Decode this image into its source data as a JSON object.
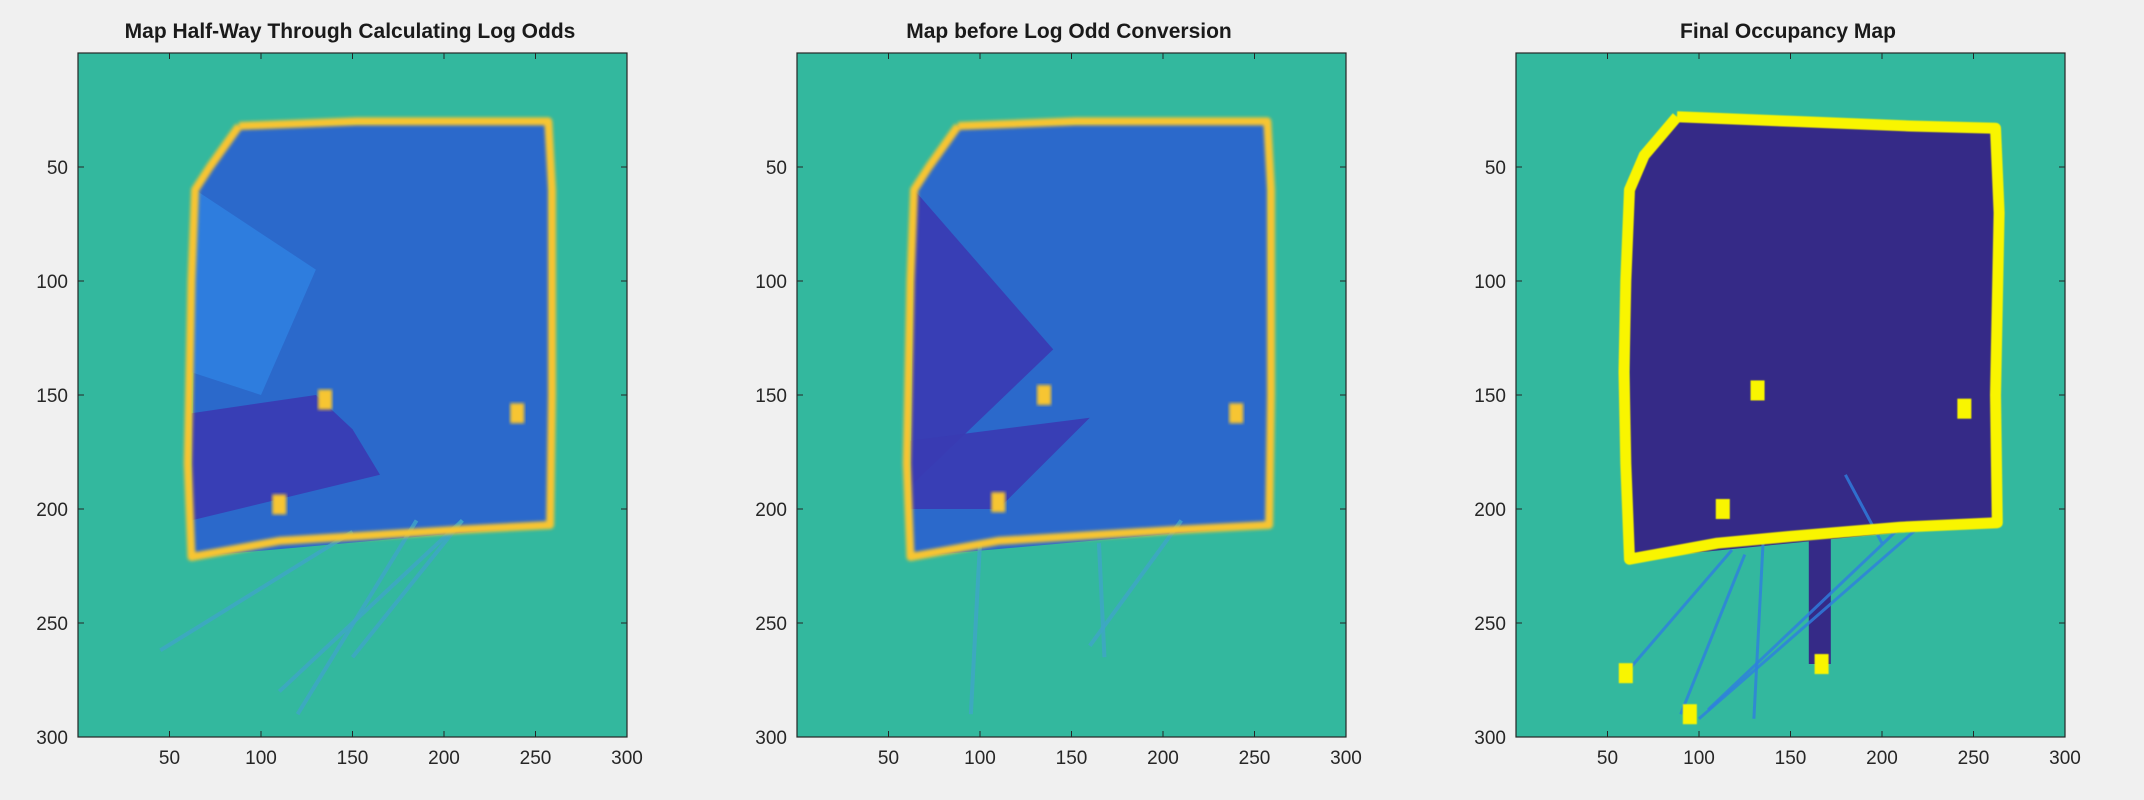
{
  "chart_data": [
    {
      "type": "heatmap",
      "title": "Map Half-Way Through Calculating Log Odds",
      "xlim": [
        0,
        300
      ],
      "ylim": [
        0,
        300
      ],
      "xticks": [
        50,
        100,
        150,
        200,
        250,
        300
      ],
      "yticks": [
        50,
        100,
        150,
        200,
        250,
        300
      ],
      "y_direction": "reversed",
      "colormap": "parula",
      "colors": {
        "background": "#33b89e",
        "occupied": "#f7c530",
        "free_light": "#2f7fe0",
        "free_dark": "#3a3bb3"
      },
      "walls": [
        [
          88,
          32
        ],
        [
          152,
          30
        ],
        [
          215,
          30
        ],
        [
          257,
          30
        ],
        [
          259,
          60
        ],
        [
          259,
          110
        ],
        [
          259,
          150
        ],
        [
          258,
          207
        ],
        [
          210,
          209
        ],
        [
          150,
          212
        ],
        [
          110,
          214
        ],
        [
          62,
          221
        ],
        [
          60,
          180
        ],
        [
          61,
          140
        ],
        [
          62,
          100
        ],
        [
          64,
          60
        ],
        [
          72,
          50
        ],
        [
          88,
          32
        ]
      ],
      "free_regions": [
        {
          "points": [
            [
              88,
              32
            ],
            [
              257,
              30
            ],
            [
              258,
              207
            ],
            [
              62,
              221
            ],
            [
              64,
              60
            ]
          ],
          "shade": "mid"
        },
        {
          "points": [
            [
              62,
              158
            ],
            [
              130,
              150
            ],
            [
              150,
              165
            ],
            [
              165,
              185
            ],
            [
              62,
              205
            ]
          ],
          "shade": "dark"
        },
        {
          "points": [
            [
              64,
              60
            ],
            [
              130,
              95
            ],
            [
              100,
              150
            ],
            [
              62,
              140
            ]
          ],
          "shade": "light"
        }
      ],
      "obstacles": [
        [
          135,
          152
        ],
        [
          110,
          198
        ],
        [
          240,
          158
        ]
      ],
      "rays": [
        [
          [
            210,
            205
          ],
          [
            150,
            265
          ]
        ],
        [
          [
            210,
            205
          ],
          [
            110,
            280
          ]
        ],
        [
          [
            185,
            205
          ],
          [
            120,
            290
          ]
        ],
        [
          [
            150,
            210
          ],
          [
            45,
            262
          ]
        ]
      ]
    },
    {
      "type": "heatmap",
      "title": "Map before Log Odd Conversion",
      "xlim": [
        0,
        300
      ],
      "ylim": [
        0,
        300
      ],
      "xticks": [
        50,
        100,
        150,
        200,
        250,
        300
      ],
      "yticks": [
        50,
        100,
        150,
        200,
        250,
        300
      ],
      "y_direction": "reversed",
      "colormap": "parula",
      "colors": {
        "background": "#33b89e",
        "occupied": "#f7c530",
        "free_light": "#2f7fe0",
        "free_dark": "#3a3bb3"
      },
      "walls": [
        [
          88,
          32
        ],
        [
          152,
          30
        ],
        [
          215,
          30
        ],
        [
          257,
          30
        ],
        [
          259,
          60
        ],
        [
          259,
          110
        ],
        [
          259,
          150
        ],
        [
          258,
          207
        ],
        [
          210,
          209
        ],
        [
          150,
          212
        ],
        [
          110,
          214
        ],
        [
          62,
          221
        ],
        [
          60,
          180
        ],
        [
          61,
          140
        ],
        [
          62,
          100
        ],
        [
          64,
          60
        ],
        [
          72,
          50
        ],
        [
          88,
          32
        ]
      ],
      "free_regions": [
        {
          "points": [
            [
              88,
              32
            ],
            [
              257,
              30
            ],
            [
              258,
              207
            ],
            [
              62,
              221
            ],
            [
              64,
              60
            ]
          ],
          "shade": "mid"
        },
        {
          "points": [
            [
              64,
              60
            ],
            [
              140,
              130
            ],
            [
              62,
              190
            ]
          ],
          "shade": "dark"
        },
        {
          "points": [
            [
              62,
              170
            ],
            [
              160,
              160
            ],
            [
              110,
              200
            ],
            [
              62,
              200
            ]
          ],
          "shade": "dark"
        }
      ],
      "obstacles": [
        [
          135,
          150
        ],
        [
          110,
          197
        ],
        [
          240,
          158
        ]
      ],
      "rays": [
        [
          [
            165,
            215
          ],
          [
            168,
            265
          ]
        ],
        [
          [
            210,
            205
          ],
          [
            160,
            260
          ]
        ],
        [
          [
            100,
            215
          ],
          [
            95,
            290
          ]
        ]
      ]
    },
    {
      "type": "heatmap",
      "title": "Final Occupancy Map",
      "xlim": [
        0,
        300
      ],
      "ylim": [
        0,
        300
      ],
      "xticks": [
        50,
        100,
        150,
        200,
        250,
        300
      ],
      "yticks": [
        50,
        100,
        150,
        200,
        250,
        300
      ],
      "y_direction": "reversed",
      "colormap": "parula",
      "colors": {
        "background": "#33b89e",
        "occupied": "#f9f500",
        "free_light": "#2f7fe0",
        "free_dark": "#352a87"
      },
      "walls": [
        [
          88,
          28
        ],
        [
          152,
          30
        ],
        [
          215,
          32
        ],
        [
          262,
          33
        ],
        [
          264,
          70
        ],
        [
          263,
          110
        ],
        [
          262,
          150
        ],
        [
          263,
          206
        ],
        [
          210,
          208
        ],
        [
          150,
          212
        ],
        [
          110,
          215
        ],
        [
          62,
          222
        ],
        [
          60,
          180
        ],
        [
          59,
          140
        ],
        [
          60,
          100
        ],
        [
          62,
          60
        ],
        [
          70,
          45
        ],
        [
          88,
          28
        ]
      ],
      "free_regions": [
        {
          "points": [
            [
              88,
              28
            ],
            [
              262,
              33
            ],
            [
              263,
              206
            ],
            [
              62,
              222
            ],
            [
              62,
              60
            ],
            [
              70,
              45
            ]
          ],
          "shade": "dark"
        },
        {
          "points": [
            [
              160,
              212
            ],
            [
              172,
              212
            ],
            [
              172,
              268
            ],
            [
              160,
              268
            ]
          ],
          "shade": "dark"
        }
      ],
      "obstacles": [
        [
          132,
          148
        ],
        [
          113,
          200
        ],
        [
          245,
          156
        ],
        [
          167,
          268
        ],
        [
          95,
          290
        ],
        [
          60,
          272
        ]
      ],
      "rays": [
        [
          [
            118,
            218
          ],
          [
            60,
            272
          ]
        ],
        [
          [
            125,
            220
          ],
          [
            90,
            290
          ]
        ],
        [
          [
            220,
            208
          ],
          [
            100,
            292
          ]
        ],
        [
          [
            210,
            208
          ],
          [
            105,
            288
          ]
        ],
        [
          [
            135,
            215
          ],
          [
            130,
            292
          ]
        ],
        [
          [
            180,
            185
          ],
          [
            200,
            215
          ]
        ]
      ]
    }
  ]
}
